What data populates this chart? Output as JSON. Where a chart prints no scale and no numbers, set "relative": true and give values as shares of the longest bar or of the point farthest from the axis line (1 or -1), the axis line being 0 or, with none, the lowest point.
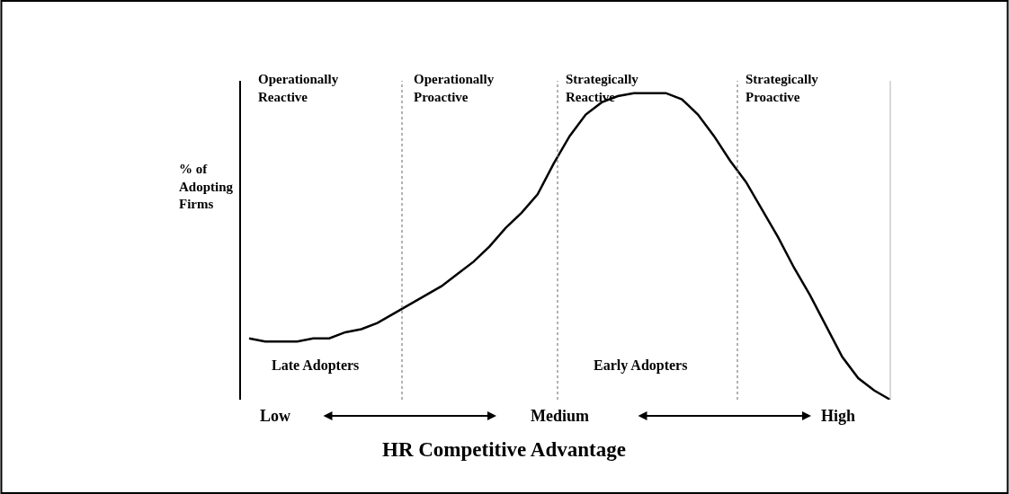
{
  "chart_data": {
    "type": "line",
    "relative": true,
    "title": "HR Competitive Advantage",
    "ylabel": "% of\nAdopting\nFirms",
    "categories": [
      null,
      null,
      null,
      null,
      null,
      null,
      null,
      null,
      null,
      null,
      null,
      null,
      null,
      null,
      null,
      null,
      null,
      null,
      null,
      null,
      null,
      null,
      null,
      null,
      null,
      null,
      null,
      null,
      null,
      null,
      null,
      null,
      null,
      null,
      null,
      null,
      null,
      null,
      null,
      null,
      null
    ],
    "marker": "none",
    "line_style": "solid",
    "series": [
      {
        "color": "#000000",
        "values": [
          0.2,
          0.19,
          0.19,
          0.19,
          0.2,
          0.2,
          0.22,
          0.23,
          0.25,
          0.28,
          0.31,
          0.34,
          0.37,
          0.41,
          0.45,
          0.5,
          0.56,
          0.61,
          0.67,
          0.77,
          0.86,
          0.93,
          0.97,
          0.99,
          1.0,
          1.0,
          1.0,
          0.98,
          0.93,
          0.86,
          0.78,
          0.71,
          0.62,
          0.53,
          0.43,
          0.34,
          0.24,
          0.14,
          0.07,
          0.03,
          0
        ]
      }
    ],
    "ref_lines": [
      {
        "axis": "x",
        "color": "#808080",
        "line_style": "dotted"
      },
      {
        "axis": "x",
        "color": "#808080",
        "line_style": "dotted"
      },
      {
        "axis": "x",
        "color": "#808080",
        "line_style": "dotted"
      },
      {
        "axis": "x",
        "color": "#c0c0c0",
        "line_style": "solid"
      }
    ],
    "annotations": [
      "Operationally\nReactive",
      "Operationally\nProactive",
      "Strategically\nReactive",
      "Strategically\nProactive",
      "Late Adopters",
      "Early Adopters",
      "Low",
      "Medium",
      "High"
    ]
  }
}
